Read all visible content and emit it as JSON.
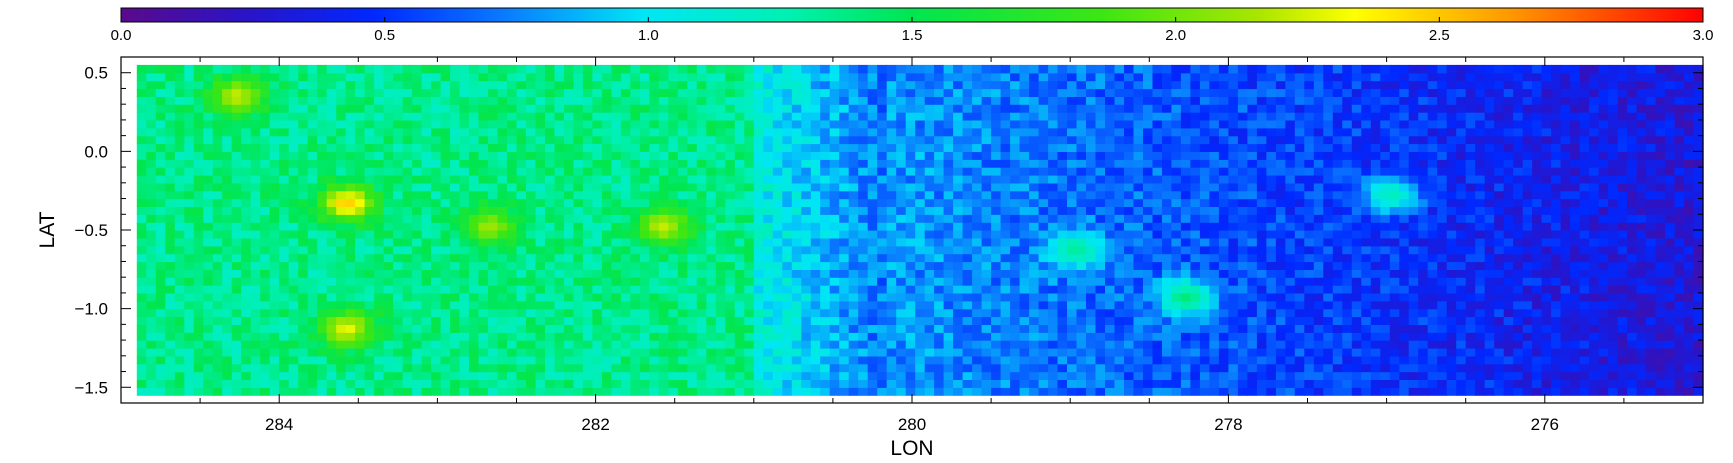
{
  "chart_data": {
    "type": "heatmap",
    "title": "",
    "xlabel": "LON",
    "ylabel": "LAT",
    "x_axis": {
      "range": [
        285,
        275
      ],
      "reversed": true,
      "ticks": [
        284,
        282,
        280,
        278,
        276
      ],
      "tick_labels": [
        "284",
        "282",
        "280",
        "278",
        "276"
      ]
    },
    "y_axis": {
      "range": [
        -1.6,
        0.6
      ],
      "ticks": [
        0.5,
        0.0,
        -0.5,
        -1.0,
        -1.5
      ],
      "tick_labels": [
        "0.5",
        "0.0",
        "−0.5",
        "−1.0",
        "−1.5"
      ]
    },
    "colorbar": {
      "range": [
        0.0,
        3.0
      ],
      "ticks": [
        0.0,
        0.5,
        1.0,
        1.5,
        2.0,
        2.5,
        3.0
      ],
      "tick_labels": [
        "0.0",
        "0.5",
        "1.0",
        "1.5",
        "2.0",
        "2.5",
        "3.0"
      ],
      "colormap": "rainbow",
      "placement": "top"
    },
    "data_extent": {
      "lon": [
        284.9,
        275.0
      ],
      "lat": [
        -1.55,
        0.55
      ]
    },
    "field_description": [
      {
        "lon_range": [
          285.0,
          281.0
        ],
        "level_range": [
          1.0,
          1.6
        ]
      },
      {
        "lon_range": [
          281.0,
          280.2
        ],
        "level_range": [
          0.7,
          1.1
        ]
      },
      {
        "lon_range": [
          280.2,
          275.0
        ],
        "level_range": [
          0.3,
          0.8
        ]
      }
    ],
    "hotspots": [
      {
        "lon": 283.6,
        "lat": -0.35,
        "value": 2.6
      },
      {
        "lon": 281.6,
        "lat": -0.5,
        "value": 2.3
      },
      {
        "lon": 283.6,
        "lat": -1.15,
        "value": 2.4
      },
      {
        "lon": 282.7,
        "lat": -0.5,
        "value": 2.2
      },
      {
        "lon": 284.3,
        "lat": 0.33,
        "value": 2.3
      },
      {
        "lon": 278.3,
        "lat": -0.95,
        "value": 1.5
      },
      {
        "lon": 279.0,
        "lat": -0.65,
        "value": 1.4
      },
      {
        "lon": 277.0,
        "lat": -0.3,
        "value": 1.3
      }
    ]
  }
}
